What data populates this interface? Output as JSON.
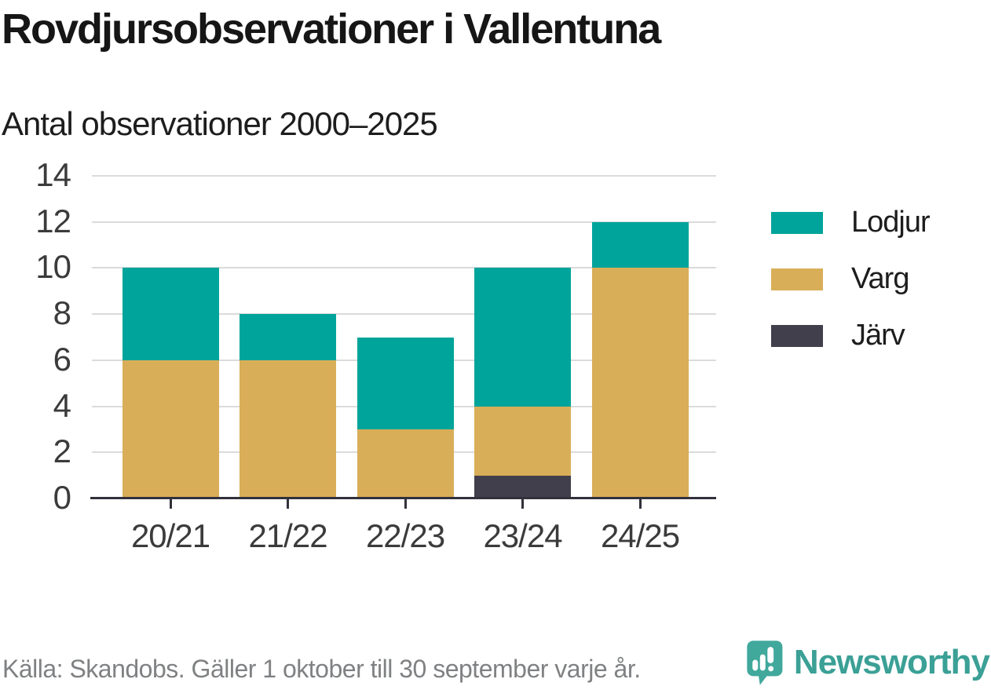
{
  "header": {
    "title": "Rovdjursobservationer i Vallentuna",
    "subtitle": "Antal observationer 2000–2025"
  },
  "chart_data": {
    "type": "bar",
    "stacked": true,
    "title": "Rovdjursobservationer i Vallentuna",
    "subtitle": "Antal observationer 2000–2025",
    "categories": [
      "20/21",
      "21/22",
      "22/23",
      "23/24",
      "24/25"
    ],
    "series": [
      {
        "name": "Lodjur",
        "color": "#00a49a",
        "values": [
          4,
          2,
          4,
          6,
          2
        ]
      },
      {
        "name": "Varg",
        "color": "#d9ae59",
        "values": [
          6,
          6,
          3,
          3,
          10
        ]
      },
      {
        "name": "Järv",
        "color": "#413f4c",
        "values": [
          0,
          0,
          0,
          1,
          0
        ]
      }
    ],
    "totals": [
      10,
      8,
      7,
      10,
      12
    ],
    "xlabel": "",
    "ylabel": "",
    "ylim": [
      0,
      14
    ],
    "yticks": [
      0,
      2,
      4,
      6,
      8,
      10,
      12,
      14
    ],
    "grid": true,
    "legend_position": "right"
  },
  "colors": {
    "gridline": "#dbdbdb",
    "axis_line": "#32313b",
    "axis_text": "#3b3b3b",
    "title_text": "#161616",
    "source_text": "#7f8183",
    "brand_teal": "#3ba096",
    "logo_bubble": "#41a89c"
  },
  "footer": {
    "source": "Källa: Skandobs. Gäller 1 oktober till 30 september varje år.",
    "brand": "Newsworthy"
  }
}
